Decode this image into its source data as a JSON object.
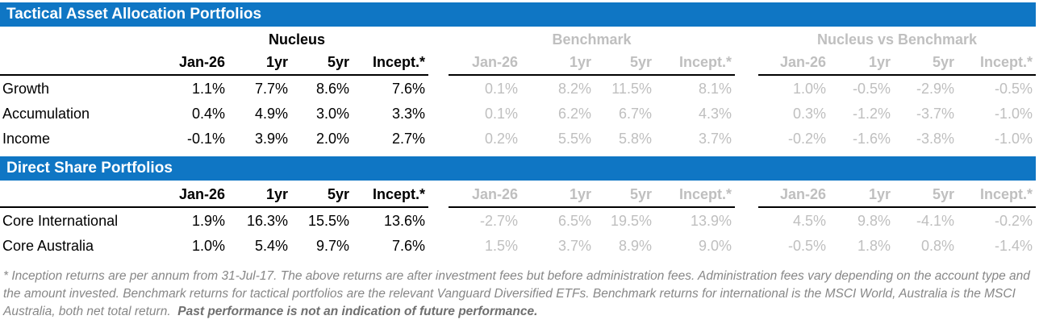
{
  "colors": {
    "header_bar_bg": "#0F76C4",
    "header_bar_text": "#FFFFFF",
    "muted_text": "#BFBFBF",
    "footnote_text": "#878787",
    "rule": "#000000"
  },
  "sections": [
    {
      "title": "Tactical Asset Allocation Portfolios",
      "groups": [
        "Nucleus",
        "Benchmark",
        "Nucleus vs Benchmark"
      ],
      "column_headers": [
        "Jan-26",
        "1yr",
        "5yr",
        "Incept.*"
      ],
      "rows": [
        {
          "label": "Growth",
          "nucleus": [
            "1.1%",
            "7.7%",
            "8.6%",
            "7.6%"
          ],
          "benchmark": [
            "0.1%",
            "8.2%",
            "11.5%",
            "8.1%"
          ],
          "vs": [
            "1.0%",
            "-0.5%",
            "-2.9%",
            "-0.5%"
          ]
        },
        {
          "label": "Accumulation",
          "nucleus": [
            "0.4%",
            "4.9%",
            "3.0%",
            "3.3%"
          ],
          "benchmark": [
            "0.1%",
            "6.2%",
            "6.7%",
            "4.3%"
          ],
          "vs": [
            "0.3%",
            "-1.2%",
            "-3.7%",
            "-1.0%"
          ]
        },
        {
          "label": "Income",
          "nucleus": [
            "-0.1%",
            "3.9%",
            "2.0%",
            "2.7%"
          ],
          "benchmark": [
            "0.2%",
            "5.5%",
            "5.8%",
            "3.7%"
          ],
          "vs": [
            "-0.2%",
            "-1.6%",
            "-3.8%",
            "-1.0%"
          ]
        }
      ]
    },
    {
      "title": "Direct Share Portfolios",
      "column_headers": [
        "Jan-26",
        "1yr",
        "5yr",
        "Incept.*"
      ],
      "rows": [
        {
          "label": "Core International",
          "nucleus": [
            "1.9%",
            "16.3%",
            "15.5%",
            "13.6%"
          ],
          "benchmark": [
            "-2.7%",
            "6.5%",
            "19.5%",
            "13.9%"
          ],
          "vs": [
            "4.5%",
            "9.8%",
            "-4.1%",
            "-0.2%"
          ]
        },
        {
          "label": "Core Australia",
          "nucleus": [
            "1.0%",
            "5.4%",
            "9.7%",
            "7.6%"
          ],
          "benchmark": [
            "1.5%",
            "3.7%",
            "8.9%",
            "9.0%"
          ],
          "vs": [
            "-0.5%",
            "1.8%",
            "0.8%",
            "-1.4%"
          ]
        }
      ]
    }
  ],
  "footnote": {
    "regular": "* Inception returns are per annum from 31-Jul-17. The above returns are after investment fees but before administration fees. Administration fees vary depending on the account type and the amount invested. Benchmark returns for tactical portfolios are the relevant Vanguard Diversified ETFs. Benchmark returns for international is the MSCI World, Australia is the MSCI Australia, both net total return.  ",
    "bold": "Past performance is not an indication of future performance."
  }
}
